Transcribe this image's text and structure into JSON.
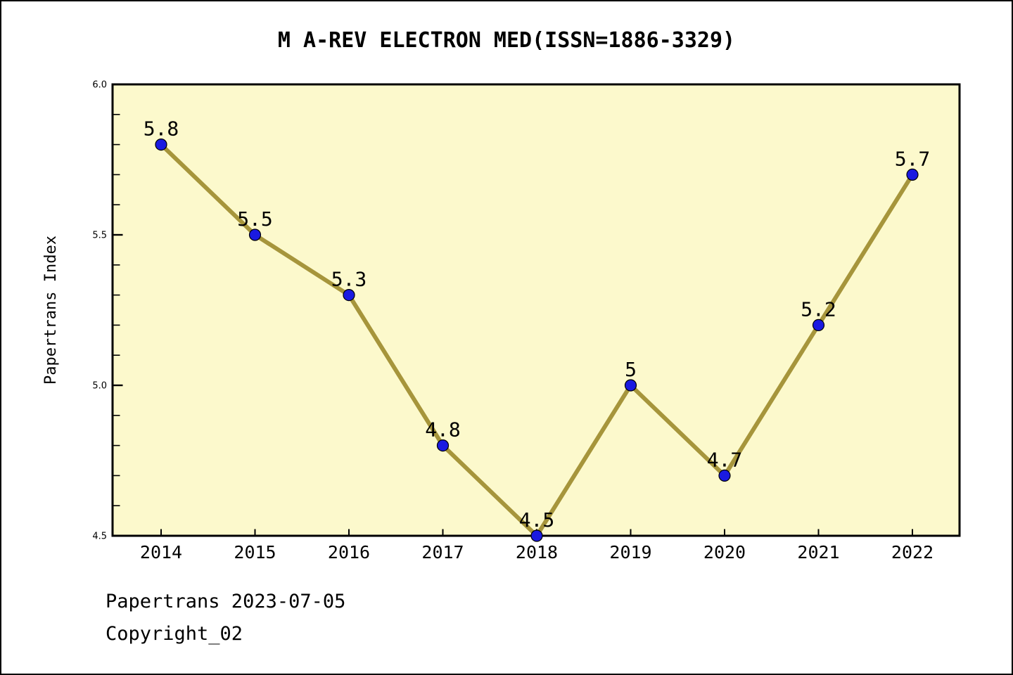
{
  "footer": {
    "line1": "Papertrans 2023-07-05",
    "line2": "Copyright_02"
  },
  "chart_data": {
    "type": "line",
    "title": "M A-REV ELECTRON MED(ISSN=1886-3329)",
    "x": [
      "2014",
      "2015",
      "2016",
      "2017",
      "2018",
      "2019",
      "2020",
      "2021",
      "2022"
    ],
    "values": [
      5.8,
      5.5,
      5.3,
      4.8,
      4.5,
      5,
      4.7,
      5.2,
      5.7
    ],
    "point_labels": [
      "5.8",
      "5.5",
      "5.3",
      "4.8",
      "4.5",
      "5",
      "4.7",
      "5.2",
      "5.7"
    ],
    "xlabel": "",
    "ylabel": "Papertrans Index",
    "ylim": [
      4.5,
      6.0
    ],
    "ytick_major": [
      4.5,
      5.0,
      5.5,
      6.0
    ],
    "ytick_labels": [
      "4.5",
      "5.0",
      "5.5",
      "6.0"
    ],
    "ytick_minor_step": 0.1,
    "grid": false,
    "legend": false,
    "colors": {
      "page_bg": "#FFFFFF",
      "plot_bg": "#FCF9CC",
      "line": "#A6953B",
      "marker": "#1A1AE1",
      "marker_edge": "#000000",
      "axis": "#000000",
      "text": "#000000"
    }
  }
}
